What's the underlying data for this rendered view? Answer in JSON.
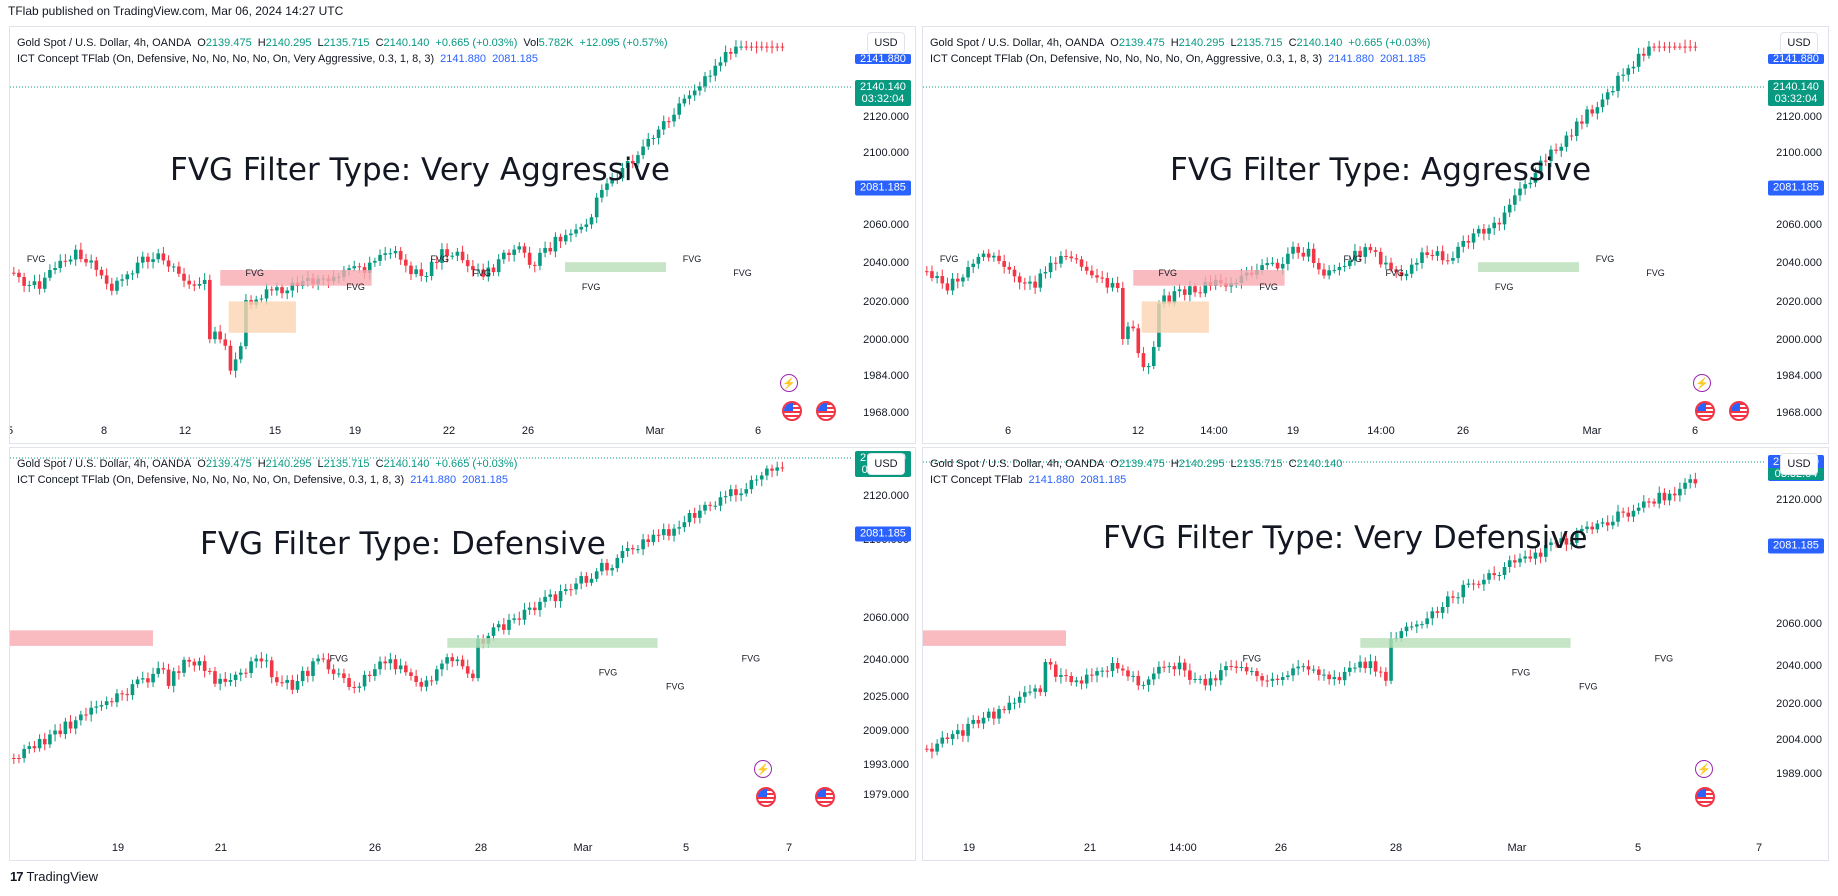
{
  "attribution": "TFlab published on TradingView.com, Mar 06, 2024 14:27 UTC",
  "footer": {
    "logo_glyph": "17",
    "brand": "TradingView"
  },
  "fvg_label": "FVG",
  "panels": [
    {
      "legend_line1": {
        "symbol": "Gold Spot / U.S. Dollar, 4h, OANDA",
        "o_label": "O",
        "o": "2139.475",
        "h_label": "H",
        "h": "2140.295",
        "l_label": "L",
        "l": "2135.715",
        "c_label": "C",
        "c": "2140.140",
        "chg": "+0.665 (+0.03%)",
        "vol_label": "Vol",
        "vol": "5.782K",
        "vol_chg": "+12.095 (+0.57%)"
      },
      "legend_line2": {
        "indicator": "ICT Concept TFlab (On, Defensive, No, No, No, No, On, Very Aggressive, 0.3, 1, 8, 3)",
        "v1": "2141.880",
        "v2": "2081.185"
      },
      "currency": "USD",
      "title": "FVG Filter Type: Very Aggressive",
      "y_ticks": [
        "2120.000",
        "2100.000",
        "2060.000",
        "2040.000",
        "2020.000",
        "2000.000",
        "1984.000",
        "1968.000"
      ],
      "price_badge": {
        "top": "2141.880",
        "price": "2140.140",
        "countdown": "03:32:04",
        "level": "2081.185"
      },
      "x_ticks": [
        "5",
        "8",
        "12",
        "15",
        "19",
        "22",
        "26",
        "Mar",
        "6"
      ]
    },
    {
      "legend_line1": {
        "symbol": "Gold Spot / U.S. Dollar, 4h, OANDA",
        "o_label": "O",
        "o": "2139.475",
        "h_label": "H",
        "h": "2140.295",
        "l_label": "L",
        "l": "2135.715",
        "c_label": "C",
        "c": "2140.140",
        "chg": "+0.665 (+0.03%)"
      },
      "legend_line2": {
        "indicator": "ICT Concept TFlab (On, Defensive, No, No, No, No, On, Aggressive, 0.3, 1, 8, 3)",
        "v1": "2141.880",
        "v2": "2081.185"
      },
      "currency": "USD",
      "title": "FVG Filter Type: Aggressive",
      "y_ticks": [
        "2120.000",
        "2100.000",
        "2060.000",
        "2040.000",
        "2020.000",
        "2000.000",
        "1984.000",
        "1968.000"
      ],
      "price_badge": {
        "top": "2141.880",
        "price": "2140.140",
        "countdown": "03:32:04",
        "level": "2081.185"
      },
      "x_ticks": [
        "6",
        "12",
        "14:00",
        "19",
        "14:00",
        "26",
        "Mar",
        "6"
      ]
    },
    {
      "legend_line1": {
        "symbol": "Gold Spot / U.S. Dollar, 4h, OANDA",
        "o_label": "O",
        "o": "2139.475",
        "h_label": "H",
        "h": "2140.295",
        "l_label": "L",
        "l": "2135.715",
        "c_label": "C",
        "c": "2140.140",
        "chg": "+0.665 (+0.03%)"
      },
      "legend_line2": {
        "indicator": "ICT Concept TFlab (On, Defensive, No, No, No, No, On, Defensive, 0.3, 1, 8, 3)",
        "v1": "2141.880",
        "v2": "2081.185"
      },
      "currency": "USD",
      "title": "FVG Filter Type: Defensive",
      "y_ticks": [
        "2120.000",
        "2100.000",
        "2060.000",
        "2040.000",
        "2025.000",
        "2009.000",
        "1993.000",
        "1979.000"
      ],
      "price_badge": {
        "price": "2140.140",
        "countdown": "03:32:04",
        "level": "2081.185"
      },
      "x_ticks": [
        "19",
        "21",
        "26",
        "28",
        "Mar",
        "5",
        "7"
      ]
    },
    {
      "legend_line1": {
        "symbol": "Gold Spot / U.S. Dollar, 4h, OANDA",
        "o_label": "O",
        "o": "2139.475",
        "h_label": "H",
        "h": "2140.295",
        "l_label": "L",
        "l": "2135.715",
        "c_label": "C",
        "c": "2140.140"
      },
      "legend_line2": {
        "indicator": "ICT Concept TFlab",
        "v1": "2141.880",
        "v2": "2081.185"
      },
      "currency": "USD",
      "title": "FVG Filter Type: Very Defensive",
      "y_ticks": [
        "2120.000",
        "2100.000",
        "2060.000",
        "2040.000",
        "2020.000",
        "2004.000",
        "1989.000"
      ],
      "price_badge": {
        "price": "2141.880",
        "countdown": "03:32:04",
        "level": "2081.185"
      },
      "x_ticks": [
        "19",
        "21",
        "14:00",
        "26",
        "28",
        "Mar",
        "5",
        "7"
      ]
    }
  ],
  "colors": {
    "up": "#089981",
    "down": "#f23645",
    "bear_fvg": "#f7a9b0",
    "bull_fvg": "#b7dfb8",
    "accent": "#2962ff"
  }
}
